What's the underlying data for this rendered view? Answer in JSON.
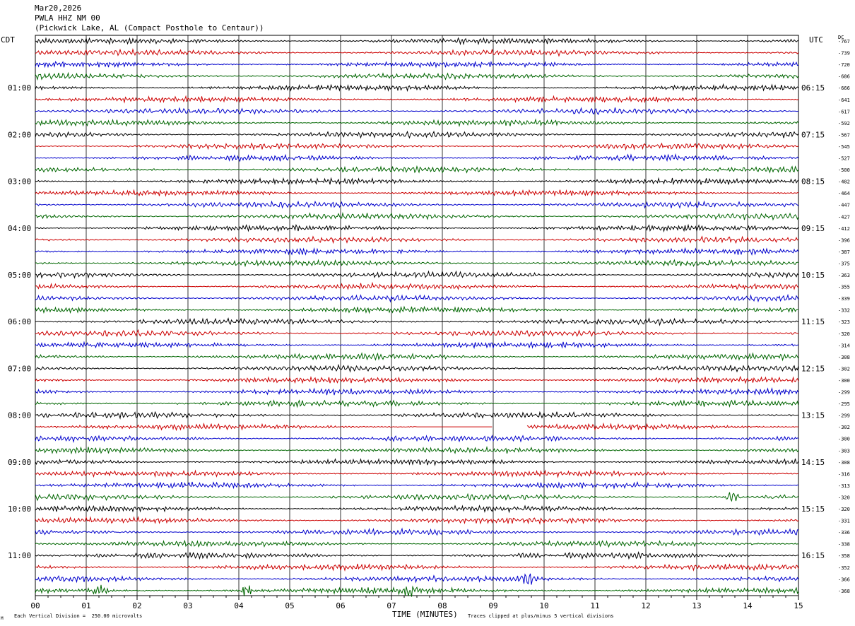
{
  "header": {
    "date": "Mar20,2026",
    "station": "PWLA HHZ NM 00",
    "location": "(Pickwick Lake, AL (Compact Posthole to Centaur))"
  },
  "left_timezone": "CDT",
  "right_timezone": "UTC",
  "dc_label": "DC",
  "footer": {
    "scale_note": "Each Vertical Division =  250.00 microvolts",
    "clip_note": "Traces clipped at plus/minus 5 vertical divisions",
    "corner_mark": "M"
  },
  "chart_data": {
    "type": "line",
    "title": "",
    "xlabel": "TIME (MINUTES)",
    "ylabel": "",
    "xlim": [
      0,
      15
    ],
    "x_ticks": [
      "00",
      "01",
      "02",
      "03",
      "04",
      "05",
      "06",
      "07",
      "08",
      "09",
      "10",
      "11",
      "12",
      "13",
      "14",
      "15"
    ],
    "grid": true,
    "row_colors": [
      "#000000",
      "#cc0000",
      "#0000cc",
      "#006600"
    ],
    "left_hour_labels": [
      "01:00",
      "02:00",
      "03:00",
      "04:00",
      "05:00",
      "06:00",
      "07:00",
      "08:00",
      "09:00",
      "10:00",
      "11:00"
    ],
    "right_hour_labels": [
      "06:15",
      "07:15",
      "08:15",
      "09:15",
      "10:15",
      "11:15",
      "12:15",
      "13:15",
      "14:15",
      "15:15",
      "16:15"
    ],
    "dc_offsets": [
      -767,
      -739,
      -720,
      -686,
      -666,
      -641,
      -617,
      -592,
      -567,
      -545,
      -527,
      -500,
      -482,
      -464,
      -447,
      -427,
      -412,
      -396,
      -387,
      -375,
      -363,
      -355,
      -339,
      -332,
      -323,
      -320,
      -314,
      -308,
      -302,
      -300,
      -299,
      -295,
      -299,
      -302,
      -300,
      -303,
      -308,
      -316,
      -313,
      -320,
      -320,
      -331,
      -336,
      -338,
      -358,
      -352,
      -366,
      -368
    ],
    "events": [
      {
        "row": 33,
        "type": "gap",
        "start_minute": 7.5,
        "end_minute": 9.0,
        "flatline": true
      },
      {
        "row": 33,
        "type": "gap",
        "start_minute": 9.0,
        "end_minute": 9.65,
        "flatline": false
      },
      {
        "row": 39,
        "type": "burst",
        "start_minute": 13.45,
        "end_minute": 13.9
      },
      {
        "row": 46,
        "type": "burst",
        "start_minute": 9.3,
        "end_minute": 10.0
      },
      {
        "row": 47,
        "type": "burst",
        "start_minute": 7.1,
        "end_minute": 7.6
      },
      {
        "row": 47,
        "type": "burst",
        "start_minute": 4.0,
        "end_minute": 4.3
      },
      {
        "row": 47,
        "type": "burst",
        "start_minute": 1.0,
        "end_minute": 1.5
      }
    ]
  }
}
